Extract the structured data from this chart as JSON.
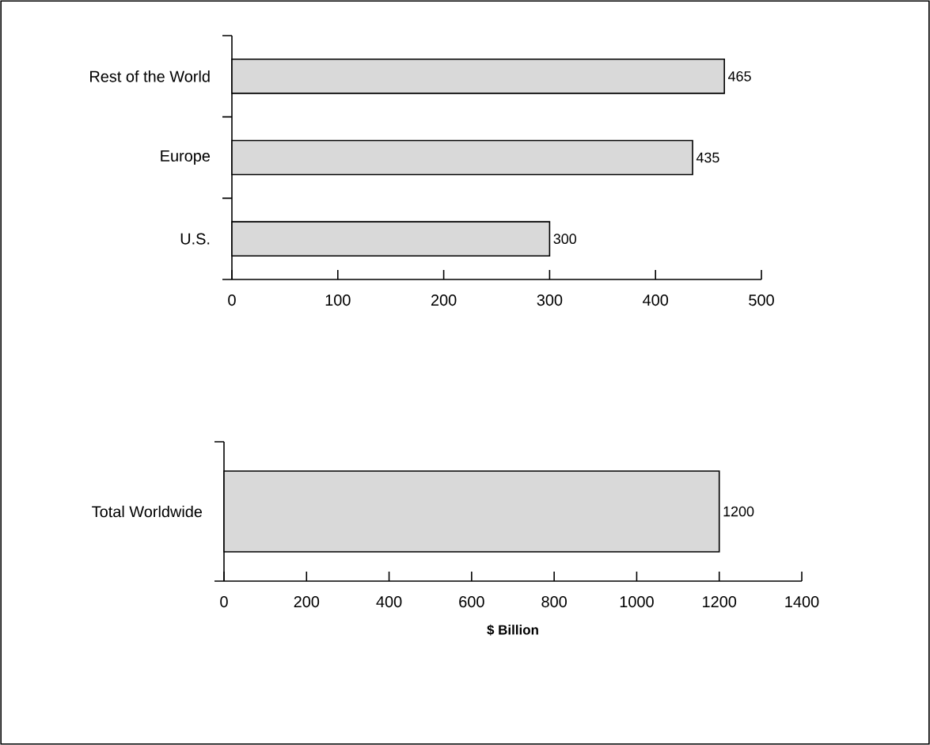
{
  "chart_data": [
    {
      "type": "bar",
      "orientation": "horizontal",
      "categories": [
        "Rest of the World",
        "Europe",
        "U.S."
      ],
      "values": [
        465,
        435,
        300
      ],
      "color": "#d9d9d9",
      "data_labels": true,
      "xlim": [
        0,
        500
      ],
      "xticks": [
        0,
        100,
        200,
        300,
        400,
        500
      ]
    },
    {
      "type": "bar",
      "orientation": "horizontal",
      "categories": [
        "Total Worldwide"
      ],
      "values": [
        1200
      ],
      "color": "#d9d9d9",
      "data_labels": true,
      "xlim": [
        0,
        1400
      ],
      "xticks": [
        0,
        200,
        400,
        600,
        800,
        1000,
        1200,
        1400
      ],
      "xlabel": "$ Billion"
    }
  ]
}
